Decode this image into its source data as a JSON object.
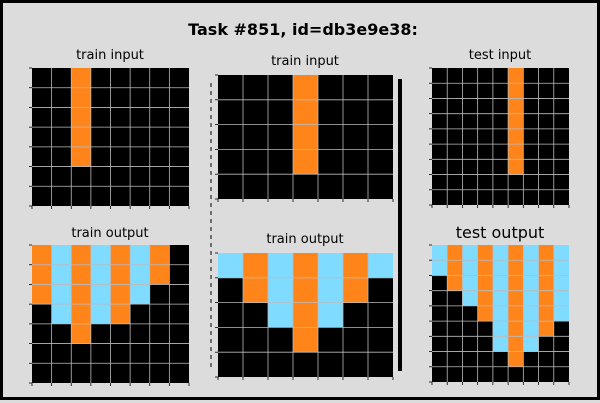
{
  "title": "Task #851, id=db3e9e38:",
  "palette": {
    "0": "#000000",
    "7": "#ff851b",
    "8": "#7fdbff"
  },
  "grid_line_color": "#bbbbbb",
  "separator_color": "#000000",
  "panels": {
    "train1_input": {
      "label": "train input",
      "grid": [
        [
          0,
          0,
          7,
          0,
          0,
          0,
          0,
          0
        ],
        [
          0,
          0,
          7,
          0,
          0,
          0,
          0,
          0
        ],
        [
          0,
          0,
          7,
          0,
          0,
          0,
          0,
          0
        ],
        [
          0,
          0,
          7,
          0,
          0,
          0,
          0,
          0
        ],
        [
          0,
          0,
          7,
          0,
          0,
          0,
          0,
          0
        ],
        [
          0,
          0,
          0,
          0,
          0,
          0,
          0,
          0
        ],
        [
          0,
          0,
          0,
          0,
          0,
          0,
          0,
          0
        ]
      ]
    },
    "train1_output": {
      "label": "train output",
      "grid": [
        [
          7,
          8,
          7,
          8,
          7,
          8,
          7,
          0
        ],
        [
          7,
          8,
          7,
          8,
          7,
          8,
          7,
          0
        ],
        [
          7,
          8,
          7,
          8,
          7,
          8,
          0,
          0
        ],
        [
          0,
          8,
          7,
          8,
          7,
          0,
          0,
          0
        ],
        [
          0,
          0,
          7,
          0,
          0,
          0,
          0,
          0
        ],
        [
          0,
          0,
          0,
          0,
          0,
          0,
          0,
          0
        ],
        [
          0,
          0,
          0,
          0,
          0,
          0,
          0,
          0
        ]
      ]
    },
    "train2_input": {
      "label": "train input",
      "grid": [
        [
          0,
          0,
          0,
          7,
          0,
          0,
          0
        ],
        [
          0,
          0,
          0,
          7,
          0,
          0,
          0
        ],
        [
          0,
          0,
          0,
          7,
          0,
          0,
          0
        ],
        [
          0,
          0,
          0,
          7,
          0,
          0,
          0
        ],
        [
          0,
          0,
          0,
          0,
          0,
          0,
          0
        ]
      ]
    },
    "train2_output": {
      "label": "train output",
      "grid": [
        [
          8,
          7,
          8,
          7,
          8,
          7,
          8
        ],
        [
          0,
          7,
          8,
          7,
          8,
          7,
          0
        ],
        [
          0,
          0,
          8,
          7,
          8,
          0,
          0
        ],
        [
          0,
          0,
          0,
          7,
          0,
          0,
          0
        ],
        [
          0,
          0,
          0,
          0,
          0,
          0,
          0
        ]
      ]
    },
    "test_input": {
      "label": "test input",
      "grid": [
        [
          0,
          0,
          0,
          0,
          0,
          7,
          0,
          0,
          0
        ],
        [
          0,
          0,
          0,
          0,
          0,
          7,
          0,
          0,
          0
        ],
        [
          0,
          0,
          0,
          0,
          0,
          7,
          0,
          0,
          0
        ],
        [
          0,
          0,
          0,
          0,
          0,
          7,
          0,
          0,
          0
        ],
        [
          0,
          0,
          0,
          0,
          0,
          7,
          0,
          0,
          0
        ],
        [
          0,
          0,
          0,
          0,
          0,
          7,
          0,
          0,
          0
        ],
        [
          0,
          0,
          0,
          0,
          0,
          7,
          0,
          0,
          0
        ],
        [
          0,
          0,
          0,
          0,
          0,
          0,
          0,
          0,
          0
        ],
        [
          0,
          0,
          0,
          0,
          0,
          0,
          0,
          0,
          0
        ]
      ]
    },
    "test_output": {
      "label": "test output",
      "grid": [
        [
          8,
          7,
          8,
          7,
          8,
          7,
          8,
          7,
          8
        ],
        [
          8,
          7,
          8,
          7,
          8,
          7,
          8,
          7,
          8
        ],
        [
          0,
          7,
          8,
          7,
          8,
          7,
          8,
          7,
          8
        ],
        [
          0,
          0,
          8,
          7,
          8,
          7,
          8,
          7,
          8
        ],
        [
          0,
          0,
          0,
          7,
          8,
          7,
          8,
          7,
          8
        ],
        [
          0,
          0,
          0,
          0,
          8,
          7,
          8,
          7,
          0
        ],
        [
          0,
          0,
          0,
          0,
          8,
          7,
          8,
          0,
          0
        ],
        [
          0,
          0,
          0,
          0,
          0,
          7,
          0,
          0,
          0
        ],
        [
          0,
          0,
          0,
          0,
          0,
          0,
          0,
          0,
          0
        ]
      ]
    }
  }
}
